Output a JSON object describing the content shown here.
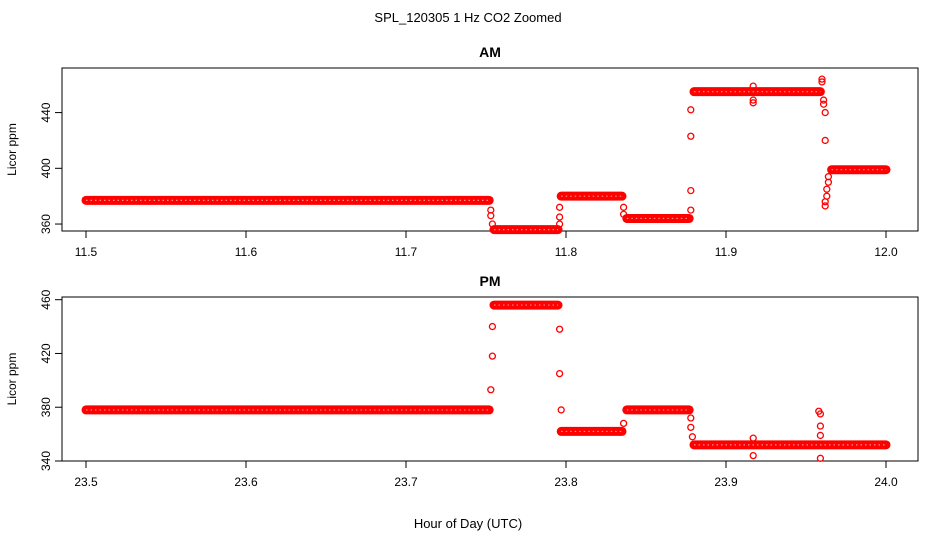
{
  "figure": {
    "title": "SPL_120305  1 Hz CO2 Zoomed",
    "xlabel": "Hour of Day (UTC)"
  },
  "colors": {
    "points": "#ff0000",
    "axes": "#000000"
  },
  "chart_data": [
    {
      "type": "scatter",
      "title": "AM",
      "ylabel": "Licor ppm",
      "xlim": [
        11.485,
        12.02
      ],
      "ylim": [
        355,
        472
      ],
      "xticks": [
        11.5,
        11.6,
        11.7,
        11.8,
        11.9,
        12.0
      ],
      "xtick_labels": [
        "11.5",
        "11.6",
        "11.7",
        "11.8",
        "11.9",
        "12.0"
      ],
      "yticks": [
        360,
        400,
        440
      ],
      "ytick_labels": [
        "360",
        "400",
        "440"
      ],
      "segments": [
        {
          "x_start": 11.5,
          "x_end": 11.752,
          "y": 377
        },
        {
          "x_start": 11.755,
          "x_end": 11.795,
          "y": 356
        },
        {
          "x_start": 11.797,
          "x_end": 11.835,
          "y": 380
        },
        {
          "x_start": 11.838,
          "x_end": 11.877,
          "y": 364
        },
        {
          "x_start": 11.88,
          "x_end": 11.959,
          "y": 455
        },
        {
          "x_start": 11.966,
          "x_end": 12.0,
          "y": 399
        }
      ],
      "points": [
        [
          11.753,
          370
        ],
        [
          11.753,
          366
        ],
        [
          11.754,
          360
        ],
        [
          11.796,
          360
        ],
        [
          11.796,
          365
        ],
        [
          11.796,
          372
        ],
        [
          11.836,
          372
        ],
        [
          11.836,
          367
        ],
        [
          11.878,
          370
        ],
        [
          11.878,
          384
        ],
        [
          11.878,
          423
        ],
        [
          11.878,
          442
        ],
        [
          11.917,
          459
        ],
        [
          11.917,
          449
        ],
        [
          11.917,
          447
        ],
        [
          11.96,
          462
        ],
        [
          11.96,
          464
        ],
        [
          11.961,
          449
        ],
        [
          11.961,
          446
        ],
        [
          11.962,
          440
        ],
        [
          11.962,
          420
        ],
        [
          11.962,
          373
        ],
        [
          11.962,
          376
        ],
        [
          11.963,
          380
        ],
        [
          11.963,
          385
        ],
        [
          11.964,
          390
        ],
        [
          11.964,
          394
        ]
      ]
    },
    {
      "type": "scatter",
      "title": "PM",
      "ylabel": "Licor ppm",
      "xlim": [
        23.485,
        24.02
      ],
      "ylim": [
        340,
        462
      ],
      "xticks": [
        23.5,
        23.6,
        23.7,
        23.8,
        23.9,
        24.0
      ],
      "xtick_labels": [
        "23.5",
        "23.6",
        "23.7",
        "23.8",
        "23.9",
        "24.0"
      ],
      "yticks": [
        340,
        380,
        420,
        460
      ],
      "ytick_labels": [
        "340",
        "380",
        "420",
        "460"
      ],
      "segments": [
        {
          "x_start": 23.5,
          "x_end": 23.752,
          "y": 378
        },
        {
          "x_start": 23.755,
          "x_end": 23.795,
          "y": 456
        },
        {
          "x_start": 23.797,
          "x_end": 23.835,
          "y": 362
        },
        {
          "x_start": 23.838,
          "x_end": 23.877,
          "y": 378
        },
        {
          "x_start": 23.88,
          "x_end": 24.0,
          "y": 352
        }
      ],
      "points": [
        [
          23.753,
          393
        ],
        [
          23.754,
          418
        ],
        [
          23.754,
          440
        ],
        [
          23.796,
          438
        ],
        [
          23.796,
          405
        ],
        [
          23.797,
          378
        ],
        [
          23.836,
          368
        ],
        [
          23.878,
          372
        ],
        [
          23.878,
          365
        ],
        [
          23.879,
          358
        ],
        [
          23.917,
          357
        ],
        [
          23.917,
          344
        ],
        [
          23.958,
          377
        ],
        [
          23.959,
          375
        ],
        [
          23.959,
          366
        ],
        [
          23.959,
          359
        ],
        [
          23.959,
          342
        ]
      ]
    }
  ]
}
